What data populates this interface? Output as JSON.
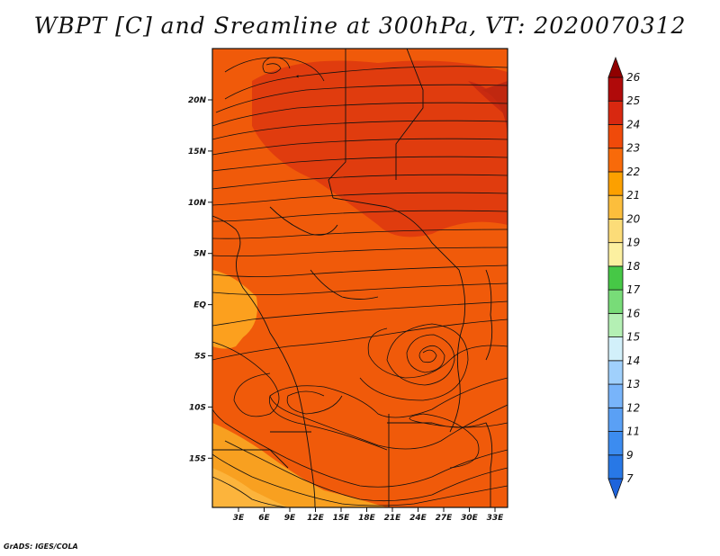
{
  "title": "WBPT [C] and Sreamline at 300hPa, VT: 2020070312",
  "footer": "GrADS: IGES/COLA",
  "map": {
    "lon_labels": [
      "3E",
      "6E",
      "9E",
      "12E",
      "15E",
      "18E",
      "21E",
      "24E",
      "27E",
      "30E",
      "33E"
    ],
    "lat_labels": [
      "20N",
      "15N",
      "10N",
      "5N",
      "EQ",
      "5S",
      "10S",
      "15S"
    ]
  },
  "colorbar": {
    "labels": [
      "7",
      "9",
      "11",
      "12",
      "13",
      "14",
      "15",
      "16",
      "17",
      "18",
      "19",
      "20",
      "21",
      "22",
      "23",
      "24",
      "25",
      "26"
    ],
    "colors": [
      "#1e64dc",
      "#2878e6",
      "#3c8cf0",
      "#5aa0f5",
      "#78b4fa",
      "#a0d0fc",
      "#d2f0fa",
      "#b4f0b4",
      "#78dc78",
      "#46c846",
      "#fcf0a0",
      "#fcdc78",
      "#fcbe3c",
      "#fca000",
      "#f86a0a",
      "#f04a0a",
      "#d82810",
      "#b00a0a",
      "#900000"
    ]
  }
}
